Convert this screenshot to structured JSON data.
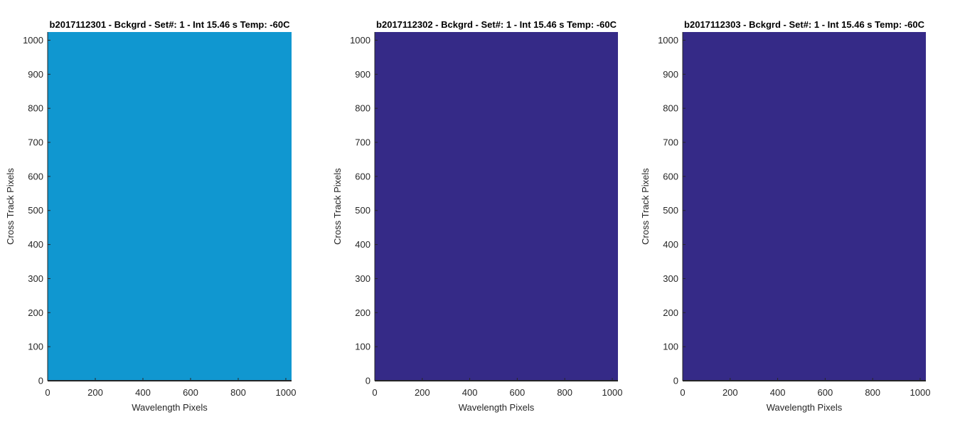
{
  "chart_data": [
    {
      "type": "heatmap",
      "title": "b2017112301 - Bckgrd - Set#: 1 - Int 15.46 s Temp: -60C",
      "xlabel": "Wavelength Pixels",
      "ylabel": "Cross Track Pixels",
      "xlim": [
        0,
        1024
      ],
      "ylim": [
        0,
        1024
      ],
      "xticks": [
        0,
        200,
        400,
        600,
        800,
        1000
      ],
      "yticks": [
        0,
        100,
        200,
        300,
        400,
        500,
        600,
        700,
        800,
        900,
        1000
      ],
      "fill_color": "#1097d0",
      "grid": false,
      "legend": "none"
    },
    {
      "type": "heatmap",
      "title": "b2017112302 - Bckgrd - Set#: 1 - Int 15.46 s Temp: -60C",
      "xlabel": "Wavelength Pixels",
      "ylabel": "Cross Track Pixels",
      "xlim": [
        0,
        1024
      ],
      "ylim": [
        0,
        1024
      ],
      "xticks": [
        0,
        200,
        400,
        600,
        800,
        1000
      ],
      "yticks": [
        0,
        100,
        200,
        300,
        400,
        500,
        600,
        700,
        800,
        900,
        1000
      ],
      "fill_color": "#352a87",
      "grid": false,
      "legend": "none"
    },
    {
      "type": "heatmap",
      "title": "b2017112303 - Bckgrd - Set#: 1 - Int 15.46 s Temp: -60C",
      "xlabel": "Wavelength Pixels",
      "ylabel": "Cross Track Pixels",
      "xlim": [
        0,
        1024
      ],
      "ylim": [
        0,
        1024
      ],
      "xticks": [
        0,
        200,
        400,
        600,
        800,
        1000
      ],
      "yticks": [
        0,
        100,
        200,
        300,
        400,
        500,
        600,
        700,
        800,
        900,
        1000
      ],
      "fill_color": "#352a87",
      "grid": false,
      "legend": "none"
    }
  ]
}
